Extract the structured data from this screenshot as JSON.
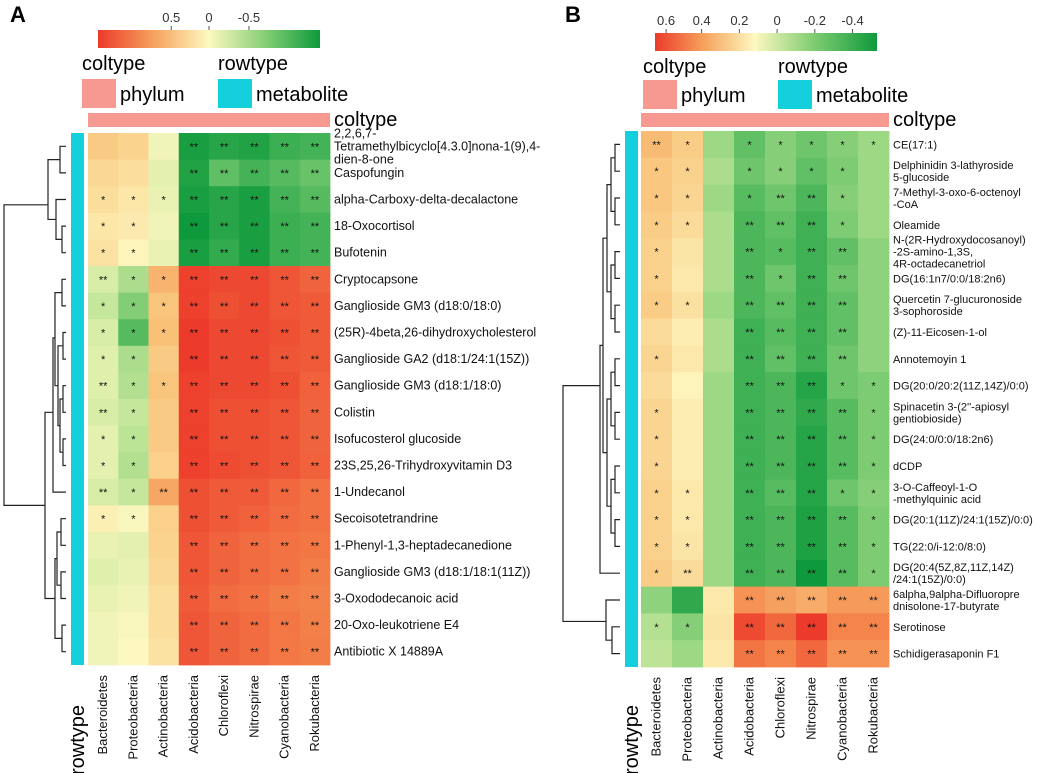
{
  "chart_data": [
    {
      "type": "heatmap",
      "panel_label": "A",
      "legend": {
        "colorbar_ticks": [
          "0.5",
          "0",
          "-0.5"
        ],
        "coltype_label": "coltype",
        "rowtype_label": "rowtype",
        "phylum_label": "phylum",
        "metabolite_label": "metabolite",
        "colors": {
          "high": "#ec3a2b",
          "mid": "#fdf8c0",
          "low": "#0e9a3c",
          "coltype": "#f69a91",
          "rowtype": "#14cfdc"
        }
      },
      "annotation_title": "coltype",
      "row_annotation_title": "rowtype",
      "columns": [
        "Bacteroidetes",
        "Proteobacteria",
        "Actinobacteria",
        "Acidobacteria",
        "Chloroflexi",
        "Nitrospirae",
        "Cyanobacteria",
        "Rokubacteria"
      ],
      "rows": [
        "2,2,6,7-\nTetramethylbicyclo[4.3.0]nona-1(9),4-\ndien-8-one",
        "Caspofungin",
        "alpha-Carboxy-delta-decalactone",
        "18-Oxocortisol",
        "Bufotenin",
        "Cryptocapsone",
        "Ganglioside GM3 (d18:0/18:0)",
        "(25R)-4beta,26-dihydroxycholesterol",
        "Ganglioside GA2 (d18:1/24:1(15Z))",
        "Ganglioside GM3 (d18:1/18:0)",
        "Colistin",
        "Isofucosterol glucoside",
        "23S,25,26-Trihydroxyvitamin D3",
        "1-Undecanol",
        "Secoisotetrandrine",
        "1-Phenyl-1,3-heptadecanedione",
        "Ganglioside GM3 (d18:1/18:1(11Z))",
        "3-Oxododecanoic acid",
        "20-Oxo-leukotriene E4",
        "Antibiotic X 14889A"
      ],
      "values": [
        [
          0.25,
          0.2,
          -0.05,
          -0.72,
          -0.68,
          -0.7,
          -0.62,
          -0.6
        ],
        [
          0.18,
          0.15,
          -0.1,
          -0.7,
          -0.52,
          -0.6,
          -0.55,
          -0.5
        ],
        [
          0.15,
          0.1,
          -0.08,
          -0.72,
          -0.68,
          -0.72,
          -0.6,
          -0.55
        ],
        [
          0.1,
          0.08,
          -0.05,
          -0.75,
          -0.68,
          -0.72,
          -0.62,
          -0.6
        ],
        [
          0.12,
          0.02,
          -0.08,
          -0.72,
          -0.65,
          -0.72,
          -0.62,
          -0.6
        ],
        [
          -0.15,
          -0.3,
          0.35,
          0.78,
          0.75,
          0.75,
          0.7,
          0.65
        ],
        [
          -0.22,
          -0.42,
          0.28,
          0.78,
          0.72,
          0.75,
          0.7,
          0.68
        ],
        [
          -0.15,
          -0.55,
          0.3,
          0.8,
          0.75,
          0.75,
          0.72,
          0.68
        ],
        [
          -0.12,
          -0.3,
          0.25,
          0.8,
          0.75,
          0.75,
          0.7,
          0.68
        ],
        [
          -0.12,
          -0.28,
          0.28,
          0.78,
          0.75,
          0.75,
          0.72,
          0.66
        ],
        [
          -0.15,
          -0.22,
          0.25,
          0.78,
          0.72,
          0.72,
          0.7,
          0.65
        ],
        [
          -0.1,
          -0.25,
          0.25,
          0.78,
          0.72,
          0.72,
          0.7,
          0.65
        ],
        [
          -0.1,
          -0.28,
          0.22,
          0.78,
          0.74,
          0.72,
          0.7,
          0.66
        ],
        [
          -0.15,
          -0.22,
          0.4,
          0.72,
          0.68,
          0.68,
          0.64,
          0.6
        ],
        [
          0.05,
          -0.02,
          0.22,
          0.72,
          0.68,
          0.66,
          0.62,
          0.6
        ],
        [
          -0.08,
          -0.1,
          0.2,
          0.7,
          0.65,
          0.62,
          0.6,
          0.58
        ],
        [
          -0.12,
          -0.08,
          0.18,
          0.7,
          0.65,
          0.62,
          0.6,
          0.56
        ],
        [
          -0.08,
          -0.05,
          0.15,
          0.68,
          0.62,
          0.6,
          0.56,
          0.54
        ],
        [
          -0.05,
          -0.02,
          0.15,
          0.7,
          0.65,
          0.62,
          0.58,
          0.55
        ],
        [
          -0.05,
          0.0,
          0.12,
          0.7,
          0.65,
          0.62,
          0.58,
          0.56
        ]
      ],
      "significance": [
        [
          "",
          "",
          "",
          "**",
          "**",
          "**",
          "**",
          "**"
        ],
        [
          "",
          "",
          "",
          "**",
          "**",
          "**",
          "**",
          "**"
        ],
        [
          "*",
          "*",
          "*",
          "**",
          "**",
          "**",
          "**",
          "**"
        ],
        [
          "*",
          "*",
          "",
          "**",
          "**",
          "**",
          "**",
          "**"
        ],
        [
          "*",
          "*",
          "",
          "**",
          "**",
          "**",
          "**",
          "**"
        ],
        [
          "**",
          "*",
          "*",
          "**",
          "**",
          "**",
          "**",
          "**"
        ],
        [
          "*",
          "*",
          "*",
          "**",
          "**",
          "**",
          "**",
          "**"
        ],
        [
          "*",
          "*",
          "*",
          "**",
          "**",
          "**",
          "**",
          "**"
        ],
        [
          "*",
          "*",
          "",
          "**",
          "**",
          "**",
          "**",
          "**"
        ],
        [
          "**",
          "*",
          "*",
          "**",
          "**",
          "**",
          "**",
          "**"
        ],
        [
          "**",
          "*",
          "",
          "**",
          "**",
          "**",
          "**",
          "**"
        ],
        [
          "*",
          "*",
          "",
          "**",
          "**",
          "**",
          "**",
          "**"
        ],
        [
          "*",
          "*",
          "",
          "**",
          "**",
          "**",
          "**",
          "**"
        ],
        [
          "**",
          "*",
          "**",
          "**",
          "**",
          "**",
          "**",
          "**"
        ],
        [
          "*",
          "*",
          "",
          "**",
          "**",
          "**",
          "**",
          "**"
        ],
        [
          "",
          "",
          "",
          "**",
          "**",
          "**",
          "**",
          "**"
        ],
        [
          "",
          "",
          "",
          "**",
          "**",
          "**",
          "**",
          "**"
        ],
        [
          "",
          "",
          "",
          "**",
          "**",
          "**",
          "**",
          "**"
        ],
        [
          "",
          "",
          "",
          "**",
          "**",
          "**",
          "**",
          "**"
        ],
        [
          "",
          "",
          "",
          "**",
          "**",
          "**",
          "**",
          "**"
        ]
      ]
    },
    {
      "type": "heatmap",
      "panel_label": "B",
      "legend": {
        "colorbar_ticks": [
          "0.6",
          "0.4",
          "0.2",
          "0",
          "-0.2",
          "-0.4"
        ],
        "coltype_label": "coltype",
        "rowtype_label": "rowtype",
        "phylum_label": "phylum",
        "metabolite_label": "metabolite",
        "colors": {
          "high": "#ec3a2b",
          "mid": "#fdf8c0",
          "low": "#0e9a3c",
          "coltype": "#f69a91",
          "rowtype": "#14cfdc"
        }
      },
      "annotation_title": "coltype",
      "row_annotation_title": "rowtype",
      "columns": [
        "Bacteroidetes",
        "Proteobacteria",
        "Actinobacteria",
        "Acidobacteria",
        "Chloroflexi",
        "Nitrospirae",
        "Cyanobacteria",
        "Rokubacteria"
      ],
      "rows": [
        "CE(17:1)",
        "Delphinidin 3-lathyroside\n5-glucoside",
        "7-Methyl-3-oxo-6-octenoyl\n-CoA",
        "Oleamide",
        "N-(2R-Hydroxydocosanoyl)\n-2S-amino-1,3S,\n4R-octadecanetriol",
        "DG(16:1n7/0:0/18:2n6)",
        "Quercetin 7-glucuronoside\n3-sophoroside",
        "(Z)-11-Eicosen-1-ol",
        "Annotemoyin 1",
        "DG(20:0/20:2(11Z,14Z)/0:0)",
        "Spinacetin 3-(2''-apiosyl\ngentiobioside)",
        "DG(24:0/0:0/18:2n6)",
        "dCDP",
        "3-O-Caffeoyl-1-O\n-methylquinic acid",
        "DG(20:1(11Z)/24:1(15Z)/0:0)",
        "TG(22:0/i-12:0/8:0)",
        "DG(20:4(5Z,8Z,11Z,14Z)\n/24:1(15Z)/0:0)",
        "6alpha,9alpha-Difluoropre\ndnisolone-17-butyrate",
        "Serotinose",
        "Schidigerasaponin F1"
      ],
      "values": [
        [
          0.3,
          0.22,
          -0.25,
          -0.38,
          -0.3,
          -0.35,
          -0.3,
          -0.25
        ],
        [
          0.25,
          0.2,
          -0.22,
          -0.35,
          -0.3,
          -0.38,
          -0.32,
          -0.25
        ],
        [
          0.25,
          0.18,
          -0.25,
          -0.4,
          -0.35,
          -0.42,
          -0.3,
          -0.25
        ],
        [
          0.22,
          0.15,
          -0.22,
          -0.42,
          -0.38,
          -0.45,
          -0.32,
          -0.25
        ],
        [
          0.2,
          0.1,
          -0.22,
          -0.42,
          -0.4,
          -0.45,
          -0.38,
          -0.28
        ],
        [
          0.2,
          0.08,
          -0.22,
          -0.42,
          -0.35,
          -0.45,
          -0.35,
          -0.28
        ],
        [
          0.22,
          0.12,
          -0.25,
          -0.42,
          -0.38,
          -0.45,
          -0.38,
          -0.28
        ],
        [
          0.15,
          0.05,
          -0.22,
          -0.45,
          -0.4,
          -0.45,
          -0.38,
          -0.28
        ],
        [
          0.18,
          0.08,
          -0.22,
          -0.45,
          -0.38,
          -0.45,
          -0.35,
          -0.28
        ],
        [
          0.15,
          0.02,
          -0.25,
          -0.45,
          -0.42,
          -0.5,
          -0.35,
          -0.32
        ],
        [
          0.18,
          0.05,
          -0.25,
          -0.45,
          -0.42,
          -0.48,
          -0.4,
          -0.32
        ],
        [
          0.18,
          0.05,
          -0.25,
          -0.45,
          -0.42,
          -0.5,
          -0.4,
          -0.32
        ],
        [
          0.18,
          0.05,
          -0.25,
          -0.45,
          -0.42,
          -0.5,
          -0.4,
          -0.32
        ],
        [
          0.2,
          0.08,
          -0.25,
          -0.45,
          -0.4,
          -0.5,
          -0.35,
          -0.3
        ],
        [
          0.2,
          0.08,
          -0.25,
          -0.45,
          -0.42,
          -0.52,
          -0.4,
          -0.32
        ],
        [
          0.2,
          0.1,
          -0.25,
          -0.45,
          -0.42,
          -0.52,
          -0.4,
          -0.32
        ],
        [
          0.22,
          0.15,
          -0.25,
          -0.45,
          -0.42,
          -0.55,
          -0.4,
          -0.32
        ],
        [
          -0.28,
          -0.48,
          0.08,
          0.45,
          0.4,
          0.35,
          0.42,
          0.42
        ],
        [
          -0.2,
          -0.3,
          0.1,
          0.7,
          0.6,
          0.75,
          0.5,
          0.5
        ],
        [
          -0.18,
          -0.25,
          0.08,
          0.55,
          0.5,
          0.6,
          0.45,
          0.45
        ]
      ],
      "significance": [
        [
          "**",
          "*",
          "",
          "*",
          "*",
          "*",
          "*",
          "*"
        ],
        [
          "*",
          "*",
          "",
          "*",
          "*",
          "*",
          "*",
          ""
        ],
        [
          "*",
          "*",
          "",
          "*",
          "**",
          "**",
          "*",
          ""
        ],
        [
          "*",
          "*",
          "",
          "**",
          "**",
          "**",
          "*",
          ""
        ],
        [
          "*",
          "",
          "",
          "**",
          "*",
          "**",
          "**",
          ""
        ],
        [
          "*",
          "",
          "",
          "**",
          "*",
          "**",
          "**",
          ""
        ],
        [
          "*",
          "*",
          "",
          "**",
          "**",
          "**",
          "**",
          ""
        ],
        [
          "",
          "",
          "",
          "**",
          "**",
          "**",
          "**",
          ""
        ],
        [
          "*",
          "",
          "",
          "**",
          "**",
          "**",
          "**",
          ""
        ],
        [
          "",
          "",
          "",
          "**",
          "**",
          "**",
          "*",
          "*"
        ],
        [
          "*",
          "",
          "",
          "**",
          "**",
          "**",
          "**",
          "*"
        ],
        [
          "*",
          "",
          "",
          "**",
          "**",
          "**",
          "**",
          "*"
        ],
        [
          "*",
          "",
          "",
          "**",
          "**",
          "**",
          "**",
          "*"
        ],
        [
          "*",
          "*",
          "",
          "**",
          "**",
          "**",
          "*",
          "*"
        ],
        [
          "*",
          "*",
          "",
          "**",
          "**",
          "**",
          "**",
          "*"
        ],
        [
          "*",
          "*",
          "",
          "**",
          "**",
          "**",
          "**",
          "*"
        ],
        [
          "*",
          "**",
          "",
          "**",
          "**",
          "**",
          "**",
          "*"
        ],
        [
          "",
          "",
          "",
          "**",
          "**",
          "**",
          "**",
          "**"
        ],
        [
          "*",
          "*",
          "",
          "**",
          "**",
          "**",
          "**",
          "**"
        ],
        [
          "",
          "",
          "",
          "**",
          "**",
          "**",
          "**",
          "**"
        ]
      ]
    }
  ]
}
